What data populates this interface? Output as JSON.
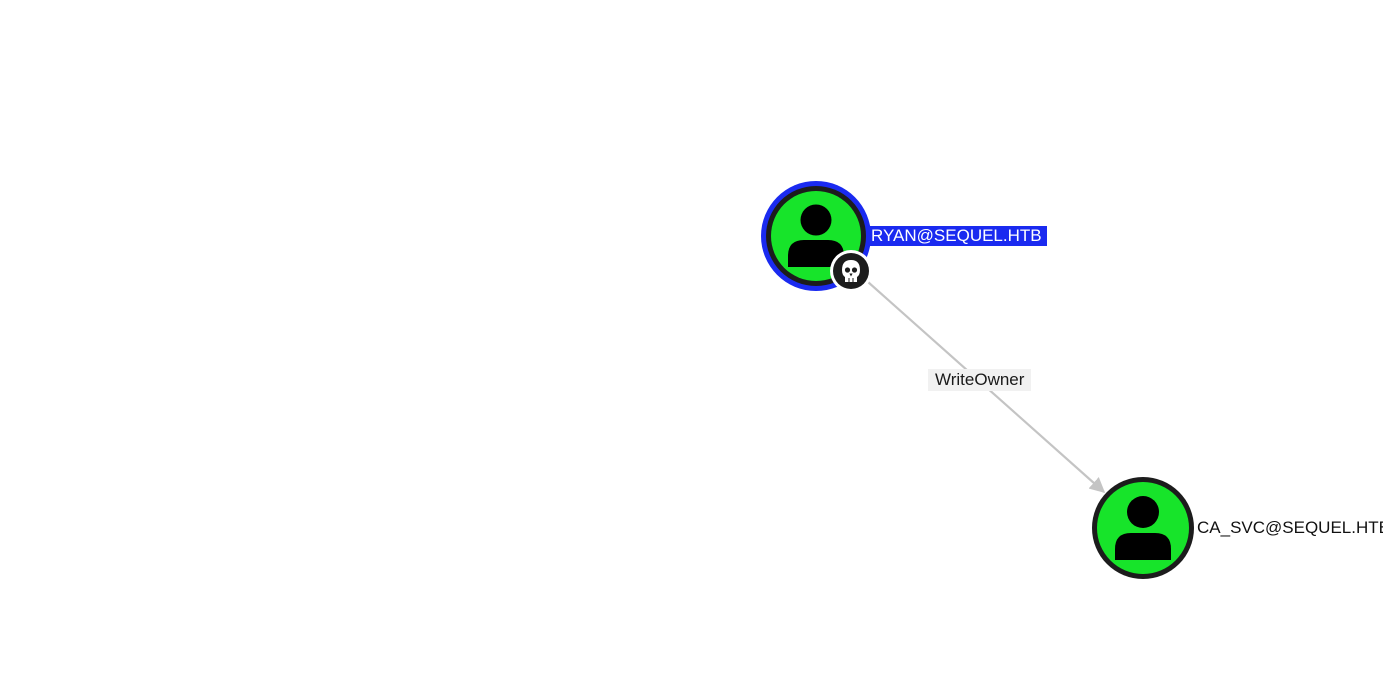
{
  "colors": {
    "background": "#ffffff",
    "node_fill": "#17e42a",
    "node_ring": "#1c1c1c",
    "selection_ring": "#1a2af0",
    "selected_label_bg": "#1a2af0",
    "edge": "#c4c4c4",
    "badge_fill": "#1c1c1c",
    "edge_label_bg": "#f1f1f1"
  },
  "nodes": [
    {
      "id": "ryan",
      "label": "RYAN@SEQUEL.HTB",
      "type": "user",
      "icon": "user-icon",
      "selected": true,
      "badge": "skull-icon"
    },
    {
      "id": "casvc",
      "label": "CA_SVC@SEQUEL.HTB",
      "type": "user",
      "icon": "user-icon",
      "selected": false,
      "badge": null
    }
  ],
  "edges": [
    {
      "from": "ryan",
      "to": "casvc",
      "label": "WriteOwner"
    }
  ]
}
